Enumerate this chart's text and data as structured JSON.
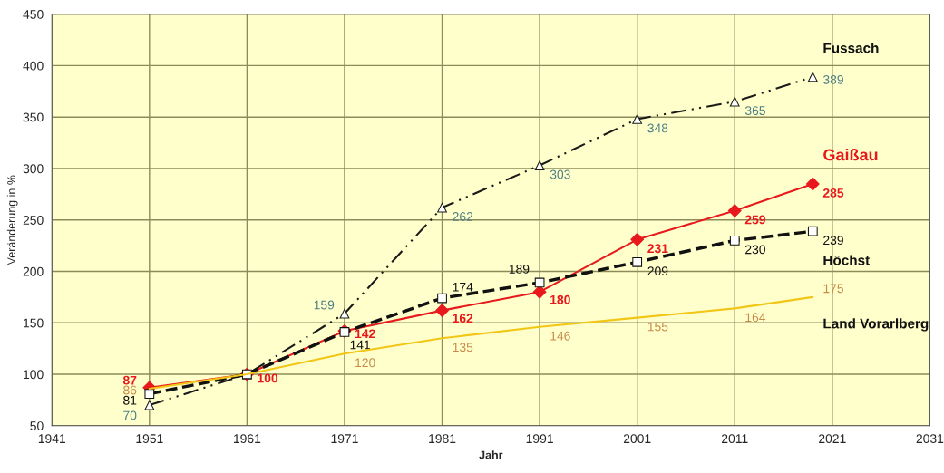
{
  "chart_data": {
    "type": "line",
    "xlabel": "Jahr",
    "ylabel": "Veränderung in %",
    "x": [
      1951,
      1961,
      1971,
      1981,
      1991,
      2001,
      2011,
      2019
    ],
    "series": [
      {
        "name": "Fussach",
        "color": "#1a1a1a",
        "marker": "triangle",
        "line_style": "dashdot",
        "values": [
          70,
          100,
          159,
          262,
          303,
          348,
          365,
          389
        ],
        "value_labels": [
          "70",
          null,
          "159",
          "262",
          "303",
          "348",
          "365",
          "389"
        ]
      },
      {
        "name": "Gaißau",
        "color": "#e8191c",
        "marker": "diamond",
        "line_style": "solid",
        "values": [
          87,
          100,
          142,
          162,
          180,
          231,
          259,
          285
        ],
        "value_labels": [
          "87",
          "100",
          "142",
          "162",
          "180",
          "231",
          "259",
          "285"
        ]
      },
      {
        "name": "Höchst",
        "color": "#111111",
        "marker": "square",
        "line_style": "dashed",
        "values": [
          81,
          100,
          141,
          174,
          189,
          209,
          230,
          239
        ],
        "value_labels": [
          "81",
          null,
          "141",
          "174",
          "189",
          "209",
          "230",
          "239"
        ]
      },
      {
        "name": "Land Vorarlberg",
        "color": "#f2c617",
        "marker": "none",
        "line_style": "solid",
        "values": [
          86,
          100,
          120,
          135,
          146,
          155,
          164,
          175
        ],
        "value_labels": [
          "86",
          null,
          "120",
          "135",
          "146",
          "155",
          "164",
          "175"
        ]
      }
    ],
    "xlim": [
      1941,
      2031
    ],
    "xticks": [
      1941,
      1951,
      1961,
      1971,
      1981,
      1991,
      2001,
      2011,
      2021,
      2031
    ],
    "ylim": [
      50,
      450
    ],
    "yticks": [
      50,
      100,
      150,
      200,
      250,
      300,
      350,
      400,
      450
    ],
    "grid": true,
    "legend": false
  }
}
